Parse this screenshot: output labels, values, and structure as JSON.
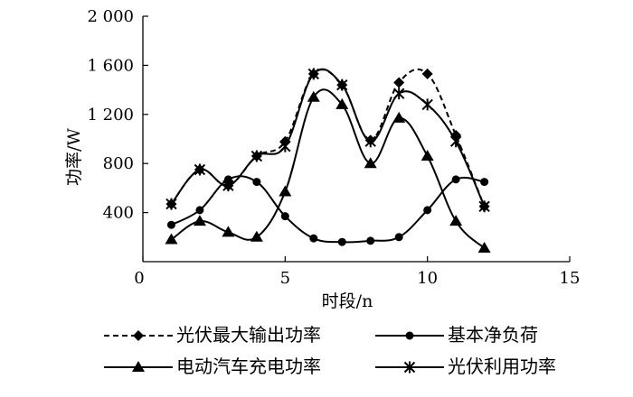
{
  "chart_data": {
    "type": "line",
    "xlabel": "时段/n",
    "ylabel": "功率/W",
    "xlim": [
      0,
      15
    ],
    "ylim": [
      0,
      2000
    ],
    "x_ticks": [
      0,
      5,
      10,
      15
    ],
    "y_ticks": [
      400,
      800,
      1200,
      1600,
      2000
    ],
    "x_tick_labels": [
      "0",
      "5",
      "10",
      "15"
    ],
    "y_tick_labels": [
      "400",
      "800",
      "1 200",
      "1 600",
      "2 000"
    ],
    "grid": false,
    "legend_position": "bottom",
    "x": [
      1,
      2,
      3,
      4,
      5,
      6,
      7,
      8,
      9,
      10,
      11,
      12
    ],
    "series": [
      {
        "name": "光伏最大输出功率",
        "marker": "diamond",
        "dash": "dashed",
        "values": [
          470,
          750,
          620,
          860,
          980,
          1530,
          1440,
          990,
          1460,
          1530,
          1030,
          450
        ]
      },
      {
        "name": "基本净负荷",
        "marker": "circle",
        "dash": "solid",
        "values": [
          300,
          420,
          670,
          650,
          370,
          190,
          160,
          170,
          200,
          420,
          670,
          650
        ]
      },
      {
        "name": "电动汽车充电功率",
        "marker": "triangle",
        "dash": "solid",
        "values": [
          180,
          330,
          240,
          200,
          570,
          1340,
          1280,
          800,
          1170,
          860,
          330,
          110
        ]
      },
      {
        "name": "光伏利用功率",
        "marker": "star",
        "dash": "solid",
        "values": [
          470,
          750,
          620,
          860,
          940,
          1530,
          1440,
          980,
          1370,
          1280,
          980,
          450
        ]
      }
    ]
  }
}
